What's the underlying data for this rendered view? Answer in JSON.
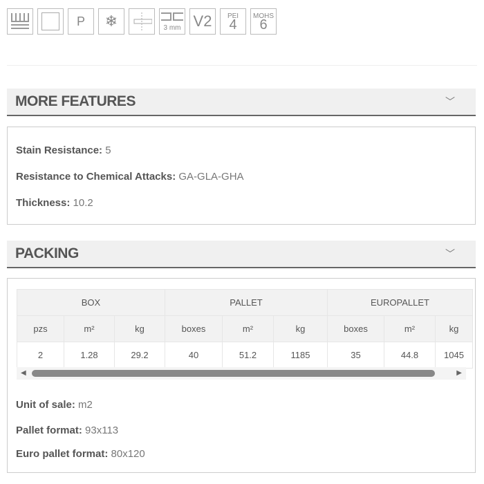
{
  "icons": [
    {
      "name": "underfloor-heating-icon"
    },
    {
      "name": "rectified-icon"
    },
    {
      "name": "p-icon",
      "label": "P"
    },
    {
      "name": "frost-resistant-icon"
    },
    {
      "name": "joint-icon"
    },
    {
      "name": "joint-width-icon",
      "label": "3 mm"
    },
    {
      "name": "shade-variation-icon",
      "label": "V2"
    },
    {
      "name": "pei-icon",
      "top": "PEI",
      "value": "4"
    },
    {
      "name": "mohs-icon",
      "top": "MOHS",
      "value": "6"
    }
  ],
  "more_features": {
    "title": "MORE FEATURES",
    "items": [
      {
        "label": "Stain Resistance:",
        "value": "5"
      },
      {
        "label": "Resistance to Chemical Attacks:",
        "value": "GA-GLA-GHA"
      },
      {
        "label": "Thickness:",
        "value": "10.2"
      }
    ]
  },
  "packing": {
    "title": "PACKING",
    "groups": [
      "BOX",
      "PALLET",
      "EUROPALLET"
    ],
    "columns": [
      "pzs",
      "m²",
      "kg",
      "boxes",
      "m²",
      "kg",
      "boxes",
      "m²",
      "kg"
    ],
    "row": [
      "2",
      "1.28",
      "29.2",
      "40",
      "51.2",
      "1185",
      "35",
      "44.8",
      "1045"
    ],
    "items": [
      {
        "label": "Unit of sale:",
        "value": "m2"
      },
      {
        "label": "Pallet format:",
        "value": "93x113"
      },
      {
        "label": "Euro pallet format:",
        "value": "80x120"
      }
    ]
  }
}
